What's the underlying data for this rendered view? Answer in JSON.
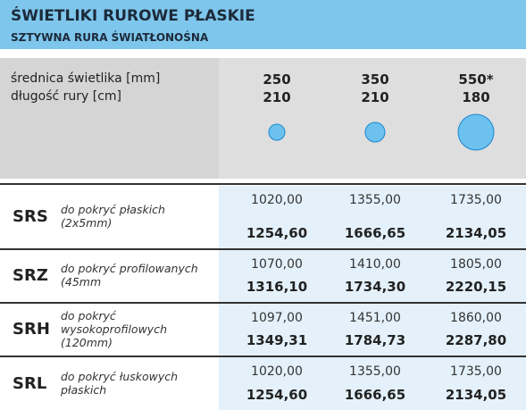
{
  "header": {
    "title": "ŚWIETLIKI RUROWE PŁASKIE",
    "subtitle": "SZTYWNA RURA ŚWIATŁONOŚNA"
  },
  "specs": {
    "labels": [
      "średnica świetlika  [mm]",
      "długość rury [cm]"
    ],
    "columns": [
      {
        "diameter": "250",
        "length": "210"
      },
      {
        "diameter": "350",
        "length": "210"
      },
      {
        "diameter": "550*",
        "length": "180"
      }
    ]
  },
  "rows": [
    {
      "code": "SRS",
      "description": [
        "do pokryć płaskich",
        "(2x5mm)"
      ],
      "prices": [
        {
          "net": "1020,00",
          "gross": "1254,60"
        },
        {
          "net": "1355,00",
          "gross": "1666,65"
        },
        {
          "net": "1735,00",
          "gross": "2134,05"
        }
      ]
    },
    {
      "code": "SRZ",
      "description": [
        "do pokryć profilowanych",
        "(45mm"
      ],
      "prices": [
        {
          "net": "1070,00",
          "gross": "1316,10"
        },
        {
          "net": "1410,00",
          "gross": "1734,30"
        },
        {
          "net": "1805,00",
          "gross": "2220,15"
        }
      ]
    },
    {
      "code": "SRH",
      "description": [
        "do pokryć",
        "wysokoprofilowych",
        "(120mm)"
      ],
      "prices": [
        {
          "net": "1097,00",
          "gross": "1349,31"
        },
        {
          "net": "1451,00",
          "gross": "1784,73"
        },
        {
          "net": "1860,00",
          "gross": "2287,80"
        }
      ]
    },
    {
      "code": "SRL",
      "description": [
        "do pokryć łuskowych",
        "płaskich"
      ],
      "prices": [
        {
          "net": "1020,00",
          "gross": "1254,60"
        },
        {
          "net": "1355,00",
          "gross": "1666,65"
        },
        {
          "net": "1735,00",
          "gross": "2134,05"
        }
      ]
    }
  ]
}
